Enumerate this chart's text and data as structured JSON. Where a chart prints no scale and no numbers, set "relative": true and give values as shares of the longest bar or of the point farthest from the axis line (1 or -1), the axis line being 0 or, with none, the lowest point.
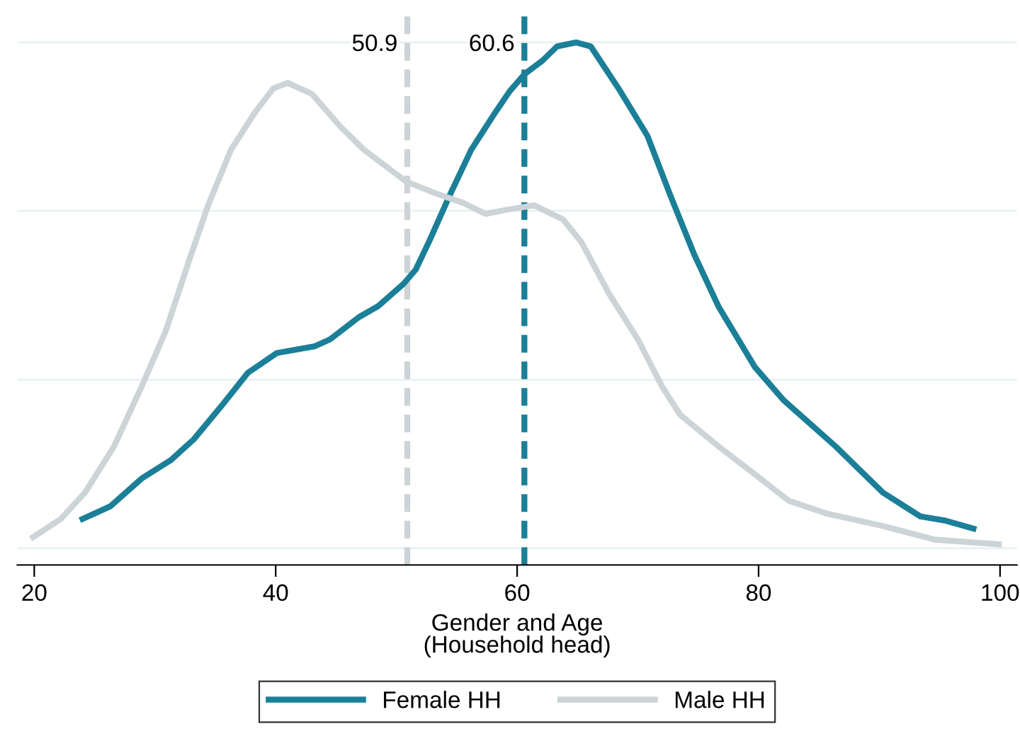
{
  "chart_data": {
    "type": "line",
    "relative": true,
    "xlabel": "Gender and Age\n(Household head)",
    "xlim": [
      18.6,
      101.4
    ],
    "xticks": [
      20,
      40,
      60,
      80,
      100
    ],
    "legend": "bottom",
    "line_style": "solid",
    "marker": "none",
    "series": [
      {
        "name": "Female HH",
        "color": "#1b7f98",
        "x": [
          24.0,
          26.3,
          28.9,
          31.3,
          33.2,
          35.6,
          37.7,
          40.1,
          43.2,
          44.5,
          46.9,
          48.5,
          50.6,
          51.6,
          52.7,
          54.4,
          56.2,
          58.2,
          59.4,
          60.6,
          62.1,
          63.3,
          64.9,
          66.1,
          68.4,
          70.8,
          72.7,
          74.7,
          76.7,
          79.7,
          82.1,
          86.4,
          90.3,
          93.4,
          95.4,
          97.8
        ],
        "values": [
          0.058,
          0.083,
          0.138,
          0.174,
          0.215,
          0.284,
          0.347,
          0.386,
          0.399,
          0.413,
          0.457,
          0.479,
          0.523,
          0.551,
          0.606,
          0.697,
          0.788,
          0.862,
          0.904,
          0.937,
          0.964,
          0.992,
          1.0,
          0.992,
          0.909,
          0.815,
          0.697,
          0.579,
          0.477,
          0.358,
          0.292,
          0.201,
          0.11,
          0.063,
          0.055,
          0.039
        ]
      },
      {
        "name": "Male HH",
        "color": "#cdd4d7",
        "x": [
          19.9,
          22.2,
          24.2,
          26.6,
          28.9,
          30.9,
          32.8,
          34.4,
          36.3,
          38.3,
          39.8,
          41.0,
          43.0,
          45.3,
          47.3,
          50.8,
          53.2,
          55.5,
          57.4,
          59.1,
          61.4,
          63.8,
          65.3,
          67.6,
          70.0,
          72.0,
          73.5,
          76.7,
          79.7,
          82.5,
          85.6,
          90.3,
          94.6,
          99.9
        ],
        "values": [
          0.022,
          0.058,
          0.11,
          0.201,
          0.32,
          0.43,
          0.567,
          0.678,
          0.788,
          0.862,
          0.909,
          0.92,
          0.898,
          0.835,
          0.788,
          0.725,
          0.702,
          0.683,
          0.661,
          0.669,
          0.678,
          0.65,
          0.606,
          0.504,
          0.413,
          0.32,
          0.264,
          0.201,
          0.146,
          0.094,
          0.069,
          0.044,
          0.017,
          0.008
        ]
      }
    ],
    "ref_lines": [
      {
        "axis": "y",
        "value": 0,
        "color": "#e8f1f2",
        "line_style": "solid"
      },
      {
        "axis": "y",
        "value": 0.333,
        "color": "#e8f1f2",
        "line_style": "solid"
      },
      {
        "axis": "y",
        "value": 0.667,
        "color": "#e8f1f2",
        "line_style": "solid"
      },
      {
        "axis": "y",
        "value": 1.0,
        "color": "#e8f1f2",
        "line_style": "solid"
      },
      {
        "axis": "x",
        "value": 50.9,
        "label": "50.9",
        "color": "#cdd4d7",
        "line_style": "dashed"
      },
      {
        "axis": "x",
        "value": 60.6,
        "label": "60.6",
        "color": "#1b7f98",
        "line_style": "dashed"
      }
    ]
  }
}
